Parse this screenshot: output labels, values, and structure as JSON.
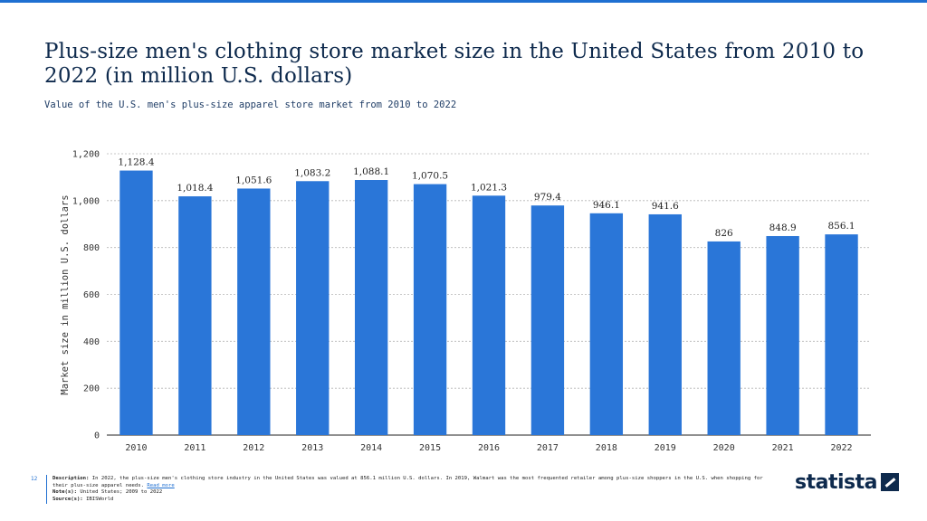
{
  "header": {
    "title": "Plus-size men's clothing store market size in the United States from 2010 to 2022 (in million U.S. dollars)",
    "subtitle": "Value of the U.S. men's plus-size apparel store market from 2010 to 2022"
  },
  "chart_data": {
    "type": "bar",
    "categories": [
      "2010",
      "2011",
      "2012",
      "2013",
      "2014",
      "2015",
      "2016",
      "2017",
      "2018",
      "2019",
      "2020",
      "2021",
      "2022"
    ],
    "values": [
      1128.4,
      1018.4,
      1051.6,
      1083.2,
      1088.1,
      1070.5,
      1021.3,
      979.4,
      946.1,
      941.6,
      826,
      848.9,
      856.1
    ],
    "value_labels": [
      "1,128.4",
      "1,018.4",
      "1,051.6",
      "1,083.2",
      "1,088.1",
      "1,070.5",
      "1,021.3",
      "979.4",
      "946.1",
      "941.6",
      "826",
      "848.9",
      "856.1"
    ],
    "ylabel": "Market size in million U.S. dollars",
    "ylim": [
      0,
      1200
    ],
    "yticks": [
      0,
      200,
      400,
      600,
      800,
      1000,
      1200
    ],
    "ytick_labels": [
      "0",
      "200",
      "400",
      "600",
      "800",
      "1,000",
      "1,200"
    ],
    "grid": true,
    "bar_color": "#2a76d8"
  },
  "footer": {
    "page_number": "12",
    "description_label": "Description:",
    "description_text": "In 2022, the plus-size men's clothing store industry in the United States was valued at 856.1 million U.S. dollars. In 2019, Walmart was the most frequented retailer among plus-size shoppers in the U.S. when shopping for their plus-size apparel needs.",
    "read_more": "Read more",
    "note_label": "Note(s):",
    "note_text": "United States; 2009 to 2022",
    "source_label": "Source(s):",
    "source_text": "IBISWorld"
  },
  "logo": {
    "text": "statista"
  }
}
